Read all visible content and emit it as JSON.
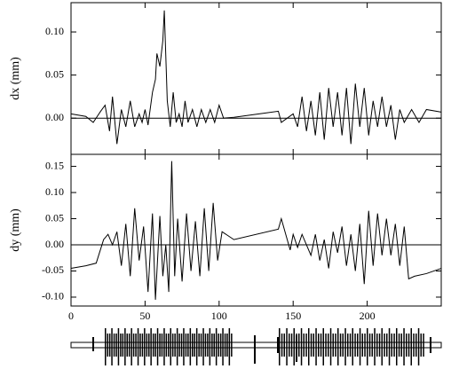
{
  "chart_data": [
    {
      "type": "line",
      "ylabel": "dx (mm)",
      "color": "#000000",
      "hline": 0,
      "xlim": [
        0,
        250
      ],
      "ylim": [
        -0.042,
        0.134
      ],
      "yticks": [
        {
          "value": 0,
          "label": "0.00"
        },
        {
          "value": 0.05,
          "label": "0.05"
        },
        {
          "value": 0.1,
          "label": "0.10"
        }
      ],
      "x": [
        0,
        10,
        15,
        20,
        23,
        26,
        28,
        31,
        34,
        37,
        40,
        43,
        46,
        48,
        50,
        52,
        55,
        57,
        58,
        60,
        62,
        63,
        65,
        67,
        69,
        71,
        73,
        75,
        77,
        79,
        82,
        85,
        88,
        91,
        94,
        97,
        100,
        103,
        110,
        140,
        142,
        150,
        153,
        156,
        159,
        162,
        165,
        168,
        171,
        174,
        177,
        180,
        183,
        186,
        189,
        192,
        195,
        198,
        201,
        204,
        207,
        210,
        213,
        216,
        219,
        222,
        225,
        230,
        235,
        240,
        250
      ],
      "values": [
        0.005,
        0.002,
        -0.005,
        0.008,
        0.015,
        -0.015,
        0.025,
        -0.03,
        0.01,
        -0.01,
        0.02,
        -0.01,
        0.005,
        -0.005,
        0.01,
        -0.008,
        0.03,
        0.045,
        0.075,
        0.06,
        0.09,
        0.125,
        0.02,
        -0.01,
        0.03,
        -0.005,
        0.005,
        -0.01,
        0.02,
        -0.005,
        0.01,
        -0.01,
        0.01,
        -0.005,
        0.01,
        -0.005,
        0.015,
        0.0,
        0.001,
        0.008,
        -0.005,
        0.005,
        -0.01,
        0.025,
        -0.015,
        0.02,
        -0.02,
        0.03,
        -0.025,
        0.035,
        -0.01,
        0.03,
        -0.02,
        0.035,
        -0.03,
        0.04,
        -0.01,
        0.035,
        -0.02,
        0.02,
        -0.01,
        0.025,
        -0.01,
        0.015,
        -0.025,
        0.01,
        -0.005,
        0.01,
        -0.005,
        0.01,
        0.007
      ]
    },
    {
      "type": "line",
      "ylabel": "dy (mm)",
      "color": "#000000",
      "hline": 0,
      "xlim": [
        0,
        250
      ],
      "ylim": [
        -0.117,
        0.173
      ],
      "xticks": [
        0,
        50,
        100,
        150,
        200
      ],
      "yticks": [
        {
          "value": -0.1,
          "label": "-0.10"
        },
        {
          "value": -0.05,
          "label": "-0.05"
        },
        {
          "value": 0,
          "label": "0.00"
        },
        {
          "value": 0.05,
          "label": "0.05"
        },
        {
          "value": 0.1,
          "label": "0.10"
        },
        {
          "value": 0.15,
          "label": "0.15"
        }
      ],
      "x": [
        0,
        10,
        17,
        22,
        25,
        28,
        31,
        34,
        37,
        40,
        43,
        46,
        49,
        52,
        55,
        57,
        60,
        62,
        64,
        66,
        68,
        70,
        72,
        75,
        78,
        81,
        84,
        87,
        90,
        93,
        96,
        99,
        102,
        110,
        140,
        142,
        145,
        148,
        150,
        153,
        156,
        159,
        162,
        165,
        168,
        171,
        174,
        177,
        180,
        183,
        186,
        189,
        192,
        195,
        198,
        201,
        204,
        207,
        210,
        213,
        216,
        219,
        222,
        225,
        228,
        232,
        240,
        250
      ],
      "values": [
        -0.045,
        -0.04,
        -0.035,
        0.01,
        0.02,
        0.0,
        0.025,
        -0.04,
        0.04,
        -0.06,
        0.07,
        -0.03,
        0.035,
        -0.09,
        0.06,
        -0.105,
        0.055,
        -0.06,
        0.0,
        -0.09,
        0.16,
        -0.06,
        0.05,
        -0.07,
        0.06,
        -0.05,
        0.045,
        -0.06,
        0.07,
        -0.05,
        0.08,
        -0.03,
        0.025,
        0.01,
        0.03,
        0.05,
        0.02,
        -0.01,
        0.02,
        -0.005,
        0.02,
        0.0,
        -0.02,
        0.02,
        -0.03,
        0.01,
        -0.045,
        0.025,
        -0.015,
        0.035,
        -0.04,
        0.02,
        -0.05,
        0.04,
        -0.075,
        0.065,
        -0.04,
        0.06,
        -0.02,
        0.05,
        -0.02,
        0.04,
        -0.04,
        0.035,
        -0.065,
        -0.06,
        -0.055,
        -0.045
      ]
    }
  ]
}
